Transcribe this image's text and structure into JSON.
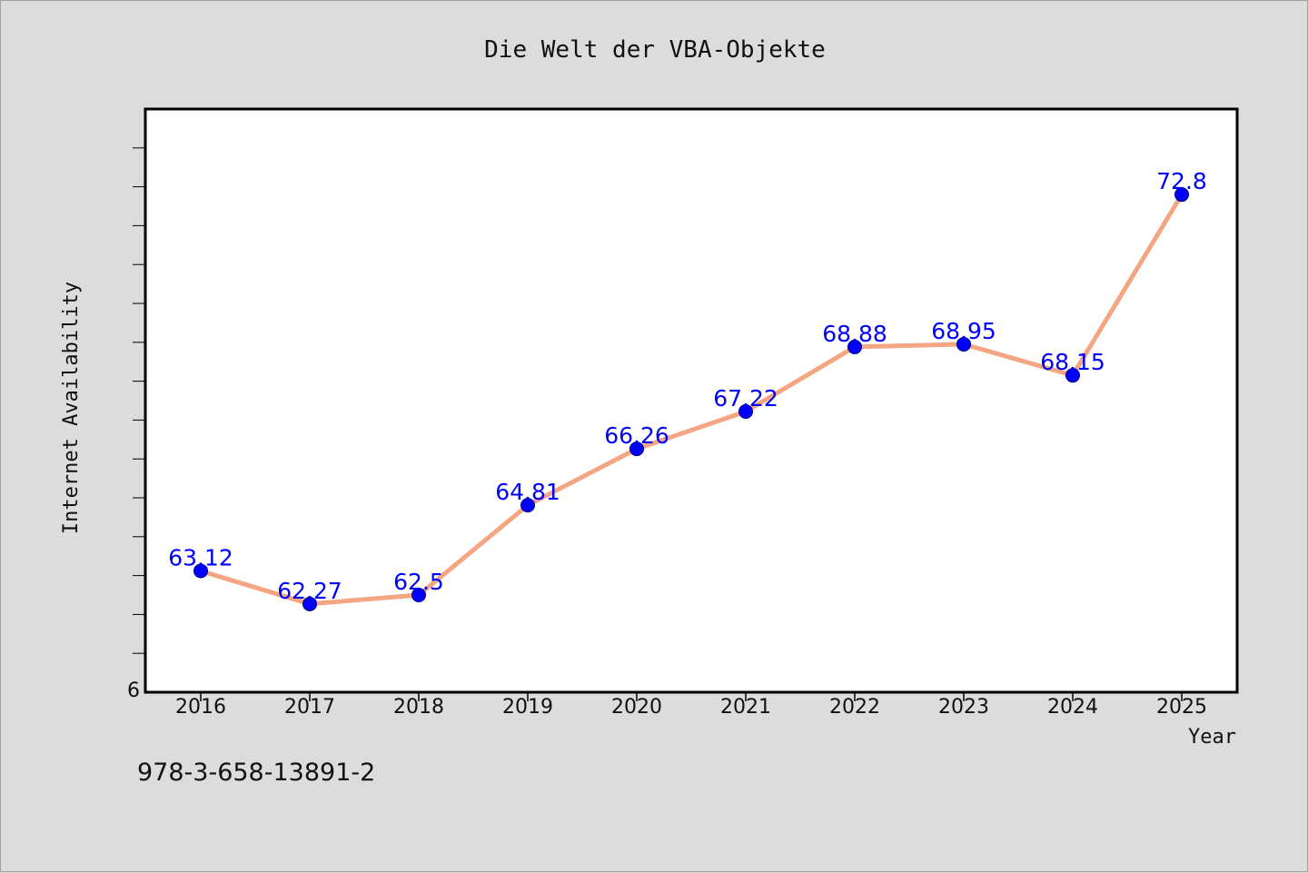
{
  "colors": {
    "background": "#dcdcdc",
    "plot_background": "#ffffff",
    "line": "#f4a582",
    "marker": "#0000ff",
    "label": "#0000ff"
  },
  "footer": {
    "code": "978-3-658-13891-2"
  },
  "chart_data": {
    "type": "line",
    "title": "Die Welt der VBA-Objekte",
    "xlabel": "Year",
    "ylabel": "Internet Availability",
    "categories": [
      "2016",
      "2017",
      "2018",
      "2019",
      "2020",
      "2021",
      "2022",
      "2023",
      "2024",
      "2025"
    ],
    "series": [
      {
        "values": [
          63.12,
          62.27,
          62.5,
          64.81,
          66.26,
          67.22,
          68.88,
          68.95,
          68.15,
          72.8
        ]
      }
    ],
    "data_labels": [
      "63.12",
      "62.27",
      "62.5",
      "64.81",
      "66.26",
      "67.22",
      "68.88",
      "68.95",
      "68.15",
      "72.8"
    ],
    "y_tick_label": "6",
    "ylim": [
      60.0,
      75.0
    ],
    "y_minor_ticks": [
      61,
      62,
      63,
      64,
      65,
      66,
      67,
      68,
      69,
      70,
      71,
      72,
      73,
      74
    ],
    "grid": false,
    "legend": "none"
  }
}
